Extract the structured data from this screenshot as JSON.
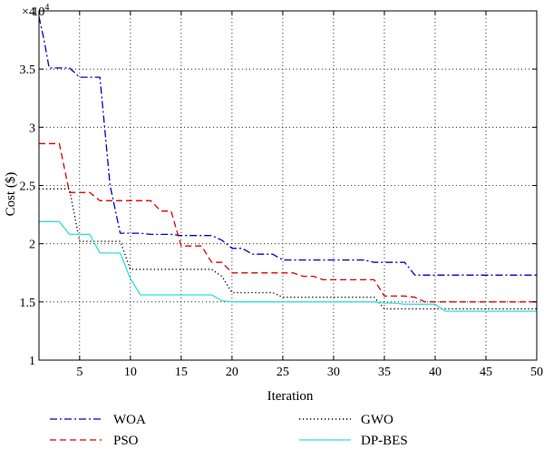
{
  "chart_data": {
    "type": "line",
    "title": "",
    "xlabel": "Iteration",
    "ylabel": "Cost ($)",
    "y_multiplier_label": "× 10",
    "y_multiplier_exp": "4",
    "xlim": [
      1,
      50
    ],
    "ylim": [
      1,
      4
    ],
    "x_ticks": [
      5,
      10,
      15,
      20,
      25,
      30,
      35,
      40,
      45,
      50
    ],
    "x_tick_labels": [
      "5",
      "10",
      "15",
      "20",
      "25",
      "30",
      "35",
      "40",
      "45",
      "50"
    ],
    "y_ticks": [
      1,
      1.5,
      2,
      2.5,
      3,
      3.5,
      4
    ],
    "y_tick_labels": [
      "1",
      "1.5",
      "2",
      "2.5",
      "3",
      "3.5",
      "4"
    ],
    "grid": true,
    "legend_position": "bottom",
    "series": [
      {
        "name": "WOA",
        "color": "#0000cc",
        "style": "dashdot",
        "x": [
          1,
          1.5,
          2,
          3,
          4,
          5,
          6,
          7,
          8,
          9,
          10,
          11,
          12,
          13,
          14,
          15,
          16,
          17,
          18,
          19,
          20,
          21,
          22,
          23,
          24,
          25,
          26,
          27,
          28,
          29,
          30,
          31,
          32,
          33,
          34,
          35,
          36,
          37,
          38,
          39,
          40,
          41,
          42,
          43,
          44,
          45,
          46,
          47,
          48,
          49,
          50
        ],
        "y": [
          3.95,
          3.75,
          3.51,
          3.51,
          3.51,
          3.43,
          3.43,
          3.43,
          2.5,
          2.09,
          2.09,
          2.09,
          2.08,
          2.08,
          2.08,
          2.07,
          2.07,
          2.07,
          2.07,
          2.03,
          1.96,
          1.96,
          1.91,
          1.91,
          1.91,
          1.86,
          1.86,
          1.86,
          1.86,
          1.86,
          1.86,
          1.86,
          1.86,
          1.86,
          1.84,
          1.84,
          1.84,
          1.84,
          1.73,
          1.73,
          1.73,
          1.73,
          1.73,
          1.73,
          1.73,
          1.73,
          1.73,
          1.73,
          1.73,
          1.73,
          1.73
        ]
      },
      {
        "name": "PSO",
        "color": "#dd0000",
        "style": "dashed",
        "x": [
          1,
          2,
          3,
          4,
          5,
          6,
          7,
          8,
          9,
          10,
          11,
          12,
          13,
          14,
          15,
          16,
          17,
          18,
          19,
          20,
          21,
          22,
          23,
          24,
          25,
          26,
          27,
          28,
          29,
          30,
          31,
          32,
          33,
          34,
          35,
          36,
          37,
          38,
          39,
          40,
          41,
          42,
          43,
          44,
          45,
          46,
          47,
          48,
          49,
          50
        ],
        "y": [
          2.86,
          2.86,
          2.86,
          2.44,
          2.44,
          2.44,
          2.37,
          2.37,
          2.37,
          2.37,
          2.37,
          2.37,
          2.28,
          2.28,
          1.98,
          1.98,
          1.98,
          1.84,
          1.84,
          1.75,
          1.75,
          1.75,
          1.75,
          1.75,
          1.75,
          1.75,
          1.72,
          1.72,
          1.69,
          1.69,
          1.69,
          1.69,
          1.69,
          1.69,
          1.55,
          1.55,
          1.55,
          1.54,
          1.5,
          1.5,
          1.5,
          1.5,
          1.5,
          1.5,
          1.5,
          1.5,
          1.5,
          1.5,
          1.5,
          1.5
        ]
      },
      {
        "name": "GWO",
        "color": "#000000",
        "style": "dotted",
        "x": [
          1,
          2,
          3,
          4,
          5,
          6,
          7,
          8,
          9,
          10,
          11,
          12,
          13,
          14,
          15,
          16,
          17,
          18,
          19,
          20,
          21,
          22,
          23,
          24,
          25,
          26,
          27,
          28,
          29,
          30,
          31,
          32,
          33,
          34,
          35,
          36,
          37,
          38,
          39,
          40,
          41,
          42,
          43,
          44,
          45,
          46,
          47,
          48,
          49,
          50
        ],
        "y": [
          2.47,
          2.47,
          2.47,
          2.47,
          2.02,
          2.02,
          2.02,
          2.02,
          2.02,
          1.78,
          1.78,
          1.78,
          1.78,
          1.78,
          1.78,
          1.78,
          1.78,
          1.78,
          1.72,
          1.58,
          1.58,
          1.58,
          1.58,
          1.58,
          1.54,
          1.54,
          1.54,
          1.54,
          1.54,
          1.54,
          1.54,
          1.54,
          1.54,
          1.54,
          1.44,
          1.44,
          1.44,
          1.44,
          1.44,
          1.44,
          1.44,
          1.44,
          1.44,
          1.44,
          1.44,
          1.44,
          1.44,
          1.44,
          1.44,
          1.44
        ]
      },
      {
        "name": "DP-BES",
        "color": "#33dddd",
        "style": "solid",
        "x": [
          1,
          2,
          3,
          4,
          5,
          6,
          7,
          8,
          9,
          10,
          11,
          12,
          13,
          14,
          15,
          16,
          17,
          18,
          19,
          20,
          21,
          22,
          23,
          24,
          25,
          26,
          27,
          28,
          29,
          30,
          31,
          32,
          33,
          34,
          35,
          36,
          37,
          38,
          39,
          40,
          41,
          42,
          43,
          44,
          45,
          46,
          47,
          48,
          49,
          50
        ],
        "y": [
          2.19,
          2.19,
          2.19,
          2.08,
          2.08,
          2.08,
          1.92,
          1.92,
          1.92,
          1.7,
          1.56,
          1.56,
          1.56,
          1.56,
          1.56,
          1.56,
          1.56,
          1.56,
          1.51,
          1.5,
          1.5,
          1.5,
          1.5,
          1.5,
          1.5,
          1.5,
          1.5,
          1.5,
          1.5,
          1.5,
          1.5,
          1.5,
          1.5,
          1.5,
          1.49,
          1.49,
          1.48,
          1.48,
          1.48,
          1.48,
          1.42,
          1.42,
          1.42,
          1.42,
          1.42,
          1.42,
          1.42,
          1.42,
          1.42,
          1.42
        ]
      }
    ]
  }
}
